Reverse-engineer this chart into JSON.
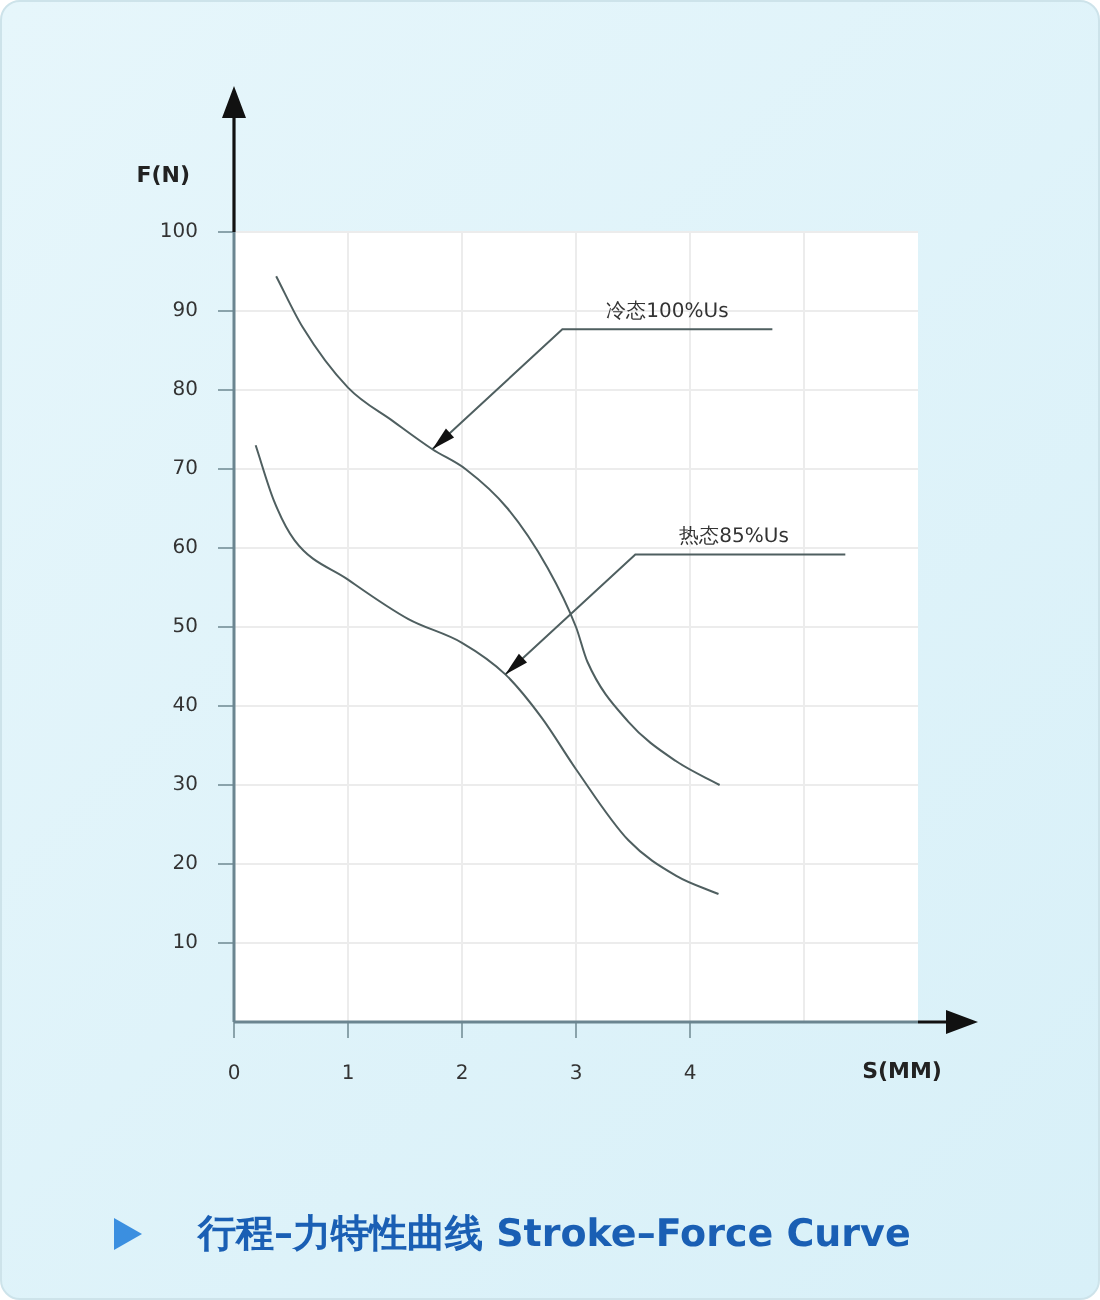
{
  "chart_data": {
    "type": "line",
    "title": "行程–力特性曲线 Stroke–Force Curve",
    "xlabel": "S(MM)",
    "ylabel": "F(N)",
    "xlim": [
      0,
      6
    ],
    "xticks": [
      0,
      1,
      2,
      3,
      4,
      {
        "value": 5,
        "label": null
      }
    ],
    "ylim": [
      0,
      100
    ],
    "yticks": [
      10,
      20,
      30,
      40,
      50,
      60,
      70,
      80,
      90,
      100
    ],
    "grid": true,
    "legend": false,
    "marker": "none",
    "line_style": "solid",
    "series": [
      {
        "color": "#4f5f60",
        "x": [
          0.37,
          0.6,
          1.0,
          1.4,
          1.74,
          2.03,
          2.4,
          2.75,
          3.0,
          3.1,
          3.46,
          3.88,
          4.26
        ],
        "values": [
          94.4,
          88,
          80.3,
          76,
          72.5,
          70,
          65,
          57.5,
          50,
          45.6,
          38,
          33,
          30
        ]
      },
      {
        "color": "#4f5f60",
        "x": [
          0.19,
          0.35,
          0.53,
          1.0,
          1.53,
          2.0,
          2.38,
          2.7,
          3.0,
          3.46,
          3.88,
          4.25
        ],
        "values": [
          73,
          66,
          61,
          56,
          51,
          48,
          44,
          38.5,
          32,
          23,
          18.5,
          16.2
        ]
      }
    ],
    "annotations": [
      {
        "text": "冷态100%Us",
        "x": 1.74,
        "y": 72.5
      },
      {
        "text": "热态85%Us",
        "x": 2.38,
        "y": 44
      }
    ]
  }
}
